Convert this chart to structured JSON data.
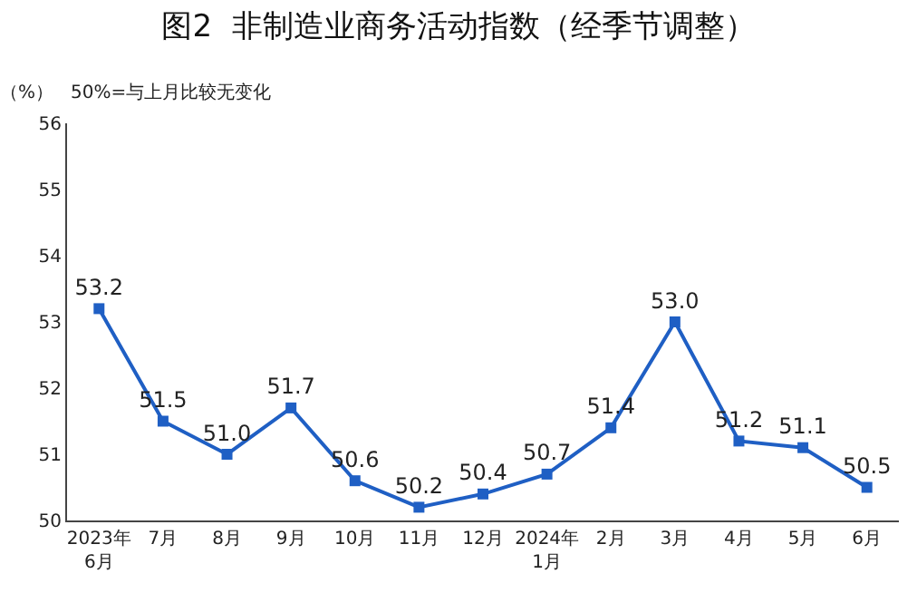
{
  "chart_data": {
    "type": "line",
    "title": "图2  非制造业商务活动指数（经季节调整）",
    "ylabel": "（%）",
    "annotations": [
      "50%=与上月比较无变化"
    ],
    "categories": [
      "2023年\n6月",
      "7月",
      "8月",
      "9月",
      "10月",
      "11月",
      "12月",
      "2024年\n1月",
      "2月",
      "3月",
      "4月",
      "5月",
      "6月"
    ],
    "series": [
      {
        "color": "#1f5fc4",
        "values": [
          53.2,
          51.5,
          51.0,
          51.7,
          50.6,
          50.2,
          50.4,
          50.7,
          51.4,
          53.0,
          51.2,
          51.1,
          50.5
        ],
        "value_labels": [
          "53.2",
          "51.5",
          "51.0",
          "51.7",
          "50.6",
          "50.2",
          "50.4",
          "50.7",
          "51.4",
          "53.0",
          "51.2",
          "51.1",
          "50.5"
        ]
      }
    ],
    "ylim": [
      50,
      56
    ],
    "yticks": [
      50,
      51,
      52,
      53,
      54,
      55,
      56
    ],
    "grid": false,
    "legend": false,
    "marker": "square",
    "line_style": "solid"
  }
}
